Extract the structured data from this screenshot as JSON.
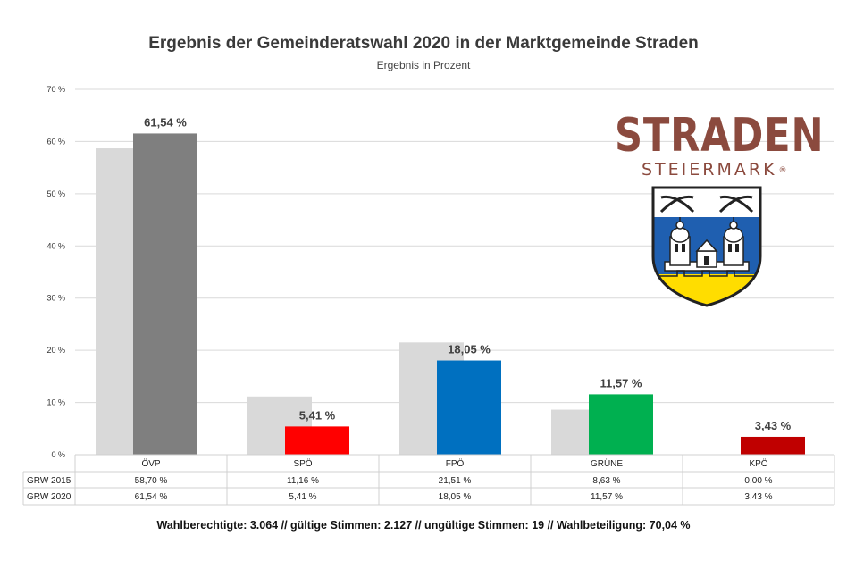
{
  "chart_data": {
    "type": "bar",
    "title": "Ergebnis der Gemeinderatswahl 2020 in der Marktgemeinde Straden",
    "subtitle": "Ergebnis in Prozent",
    "categories": [
      "ÖVP",
      "SPÖ",
      "FPÖ",
      "GRÜNE",
      "KPÖ"
    ],
    "series": [
      {
        "name": "GRW 2015",
        "values": [
          58.7,
          11.16,
          21.51,
          8.63,
          0.0
        ],
        "labels": [
          "58,70 %",
          "11,16 %",
          "21,51 %",
          "8,63 %",
          "0,00 %"
        ],
        "colors": [
          "#d9d9d9",
          "#d9d9d9",
          "#d9d9d9",
          "#d9d9d9",
          "#d9d9d9"
        ]
      },
      {
        "name": "GRW 2020",
        "values": [
          61.54,
          5.41,
          18.05,
          11.57,
          3.43
        ],
        "labels": [
          "61,54 %",
          "5,41 %",
          "18,05 %",
          "11,57 %",
          "3,43 %"
        ],
        "colors": [
          "#7f7f7f",
          "#ff0000",
          "#0070c0",
          "#00b050",
          "#c00000"
        ]
      }
    ],
    "data_labels_series": "GRW 2020",
    "ylim": [
      0,
      70
    ],
    "yticks": [
      0,
      10,
      20,
      30,
      40,
      50,
      60,
      70
    ],
    "ytick_labels": [
      "0 %",
      "10 %",
      "20 %",
      "30 %",
      "40 %",
      "50 %",
      "60 %",
      "70 %"
    ],
    "grid": true,
    "data_table": true
  },
  "footer": "Wahlberechtigte: 3.064  //  gültige Stimmen: 2.127  //  ungültige Stimmen: 19  //  Wahlbeteiligung: 70,04 %",
  "logo": {
    "word": "STRADEN",
    "sub": "STEIERMARK",
    "reg": "®"
  }
}
